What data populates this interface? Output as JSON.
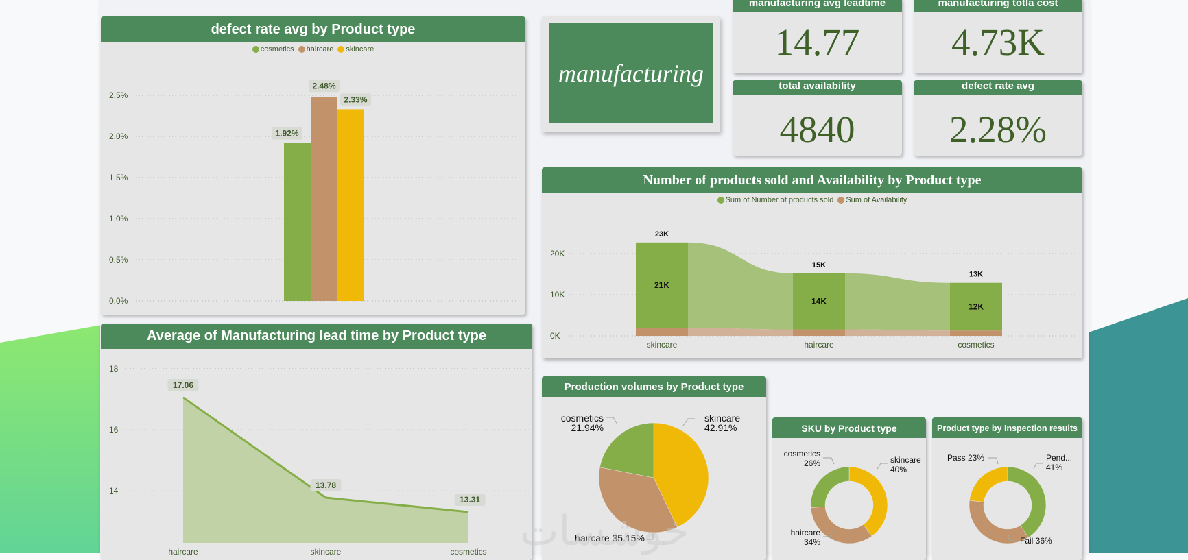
{
  "colors": {
    "header_green": "#4c8a5c",
    "card_bg": "#e6e6e6",
    "kpi_text": "#3f6128",
    "cosmetics": "#86ae48",
    "haircare": "#c2936a",
    "skincare": "#f0b908",
    "area_fill": "#c0d2a6",
    "bg_green": "#8ee870",
    "bg_teal": "#3d9494"
  },
  "title_card": {
    "label": "manufacturing"
  },
  "kpis": [
    {
      "label": "manufacturing avg leadtime",
      "value": "14.77"
    },
    {
      "label": "manufacturing totla cost",
      "value": "4.73K"
    },
    {
      "label": "total availability",
      "value": "4840"
    },
    {
      "label": "defect rate avg",
      "value": "2.28%"
    }
  ],
  "watermark": "خوشسات",
  "chart_data": [
    {
      "id": "defect_rate",
      "type": "bar",
      "title": "defect rate avg by Product type",
      "legend": [
        "cosmetics",
        "haircare",
        "skincare"
      ],
      "legend_position": "top-center",
      "categories": [
        "cosmetics",
        "haircare",
        "skincare"
      ],
      "values": [
        1.92,
        2.48,
        2.33
      ],
      "data_labels": [
        "1.92%",
        "2.48%",
        "2.33%"
      ],
      "yticks": [
        "0.0%",
        "0.5%",
        "1.0%",
        "1.5%",
        "2.0%",
        "2.5%"
      ],
      "ytick_values": [
        0,
        0.5,
        1.0,
        1.5,
        2.0,
        2.5
      ],
      "ylim": [
        0,
        2.75
      ],
      "grid": true
    },
    {
      "id": "lead_time",
      "type": "area",
      "title": "Average of Manufacturing lead time by Product type",
      "categories": [
        "haircare",
        "skincare",
        "cosmetics"
      ],
      "values": [
        17.06,
        13.78,
        13.31
      ],
      "data_labels": [
        "17.06",
        "13.78",
        "13.31"
      ],
      "yticks": [
        "14",
        "16",
        "18"
      ],
      "ytick_values": [
        14,
        16,
        18
      ],
      "ylim": [
        12.3,
        18.2
      ],
      "grid": true
    },
    {
      "id": "sold_availability",
      "type": "bar",
      "stacked": true,
      "title": "Number of products sold and Availability by Product type",
      "legend": [
        "Sum of Number of products sold",
        "Sum of Availability"
      ],
      "legend_position": "top-center",
      "categories": [
        "skincare",
        "haircare",
        "cosmetics"
      ],
      "series": [
        {
          "name": "Sum of Number of products sold",
          "values": [
            20731,
            13611,
            11581
          ],
          "labels": [
            "21K",
            "14K",
            "12K"
          ]
        },
        {
          "name": "Sum of Availability",
          "values": [
            1965,
            1575,
            1300
          ]
        }
      ],
      "totals_labels": [
        "23K",
        "15K",
        "13K"
      ],
      "yticks": [
        "0K",
        "10K",
        "20K"
      ],
      "ytick_values": [
        0,
        10000,
        20000
      ],
      "ylim": [
        0,
        25000
      ],
      "grid": true
    },
    {
      "id": "production_volumes",
      "type": "pie",
      "title": "Production volumes by Product type",
      "labels": [
        "skincare",
        "haircare",
        "cosmetics"
      ],
      "values": [
        42.91,
        35.15,
        21.94
      ],
      "display": [
        "skincare\n42.91%",
        "haircare 35.15%",
        "cosmetics\n21.94%"
      ]
    },
    {
      "id": "sku",
      "type": "pie",
      "donut": true,
      "title": "SKU by Product type",
      "labels": [
        "skincare",
        "haircare",
        "cosmetics"
      ],
      "values": [
        40,
        34,
        26
      ],
      "display": [
        "skincare\n40%",
        "haircare\n34%",
        "cosmetics\n26%"
      ]
    },
    {
      "id": "inspection",
      "type": "pie",
      "donut": true,
      "title": "Product type by Inspection results",
      "labels": [
        "Pending",
        "Fail",
        "Pass"
      ],
      "values": [
        41,
        36,
        23
      ],
      "display": [
        "Pend...\n41%",
        "Fail 36%",
        "Pass 23%"
      ]
    }
  ]
}
